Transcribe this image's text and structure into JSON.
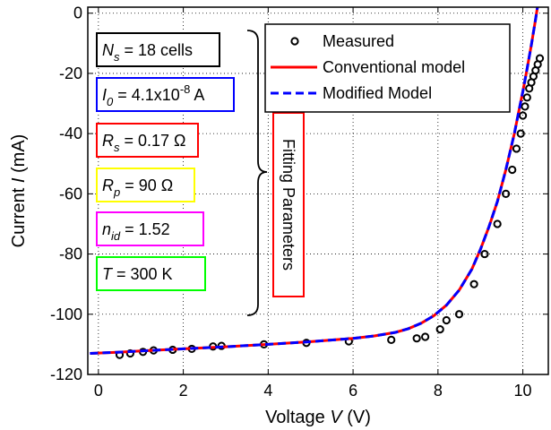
{
  "chart_data": {
    "type": "line",
    "xlabel_text": "Voltage ",
    "xlabel_var": "V",
    "xlabel_unit": " (V)",
    "ylabel_text": "Current ",
    "ylabel_var": "I",
    "ylabel_unit": " (mA)",
    "xlim": [
      -0.25,
      10.6
    ],
    "ylim": [
      -120,
      2
    ],
    "xticks": [
      0,
      2,
      4,
      6,
      8,
      10
    ],
    "yticks": [
      0,
      -20,
      -40,
      -60,
      -80,
      -100,
      -120
    ],
    "grid": "dotted",
    "legend_placement": "top-right",
    "legend": [
      "Measured",
      "Conventional model",
      "Modified Model"
    ],
    "series": [
      {
        "name": "Measured",
        "style": "markers",
        "color": "#000000",
        "x": [
          0.5,
          0.75,
          1.05,
          1.3,
          1.75,
          2.2,
          2.7,
          2.9,
          3.9,
          4.9,
          5.9,
          6.9,
          7.5,
          7.7,
          8.05,
          8.2,
          8.5,
          8.85,
          9.1,
          9.4,
          9.6,
          9.75,
          9.85,
          9.95,
          10.0,
          10.05,
          10.1,
          10.15,
          10.2,
          10.25,
          10.3,
          10.35,
          10.4
        ],
        "y": [
          -113.5,
          -113,
          -112.5,
          -112,
          -111.8,
          -111.5,
          -110.7,
          -110.5,
          -110,
          -109.5,
          -109,
          -108.5,
          -108,
          -107.5,
          -105,
          -102,
          -100,
          -90,
          -80,
          -70,
          -60,
          -52,
          -45,
          -40,
          -34,
          -31,
          -28,
          -25,
          -23,
          -21,
          -19,
          -17,
          -15
        ]
      },
      {
        "name": "Conventional model",
        "style": "solid",
        "color": "#ff0000",
        "x": [
          -0.2,
          0.5,
          1,
          2,
          3,
          4,
          5,
          6,
          6.5,
          7,
          7.3,
          7.6,
          7.9,
          8.2,
          8.5,
          8.8,
          9.0,
          9.2,
          9.4,
          9.6,
          9.8,
          9.9,
          10.0,
          10.1,
          10.2,
          10.3,
          10.4,
          10.45
        ],
        "y": [
          -113,
          -112.6,
          -112.2,
          -111.5,
          -110.8,
          -110,
          -109.1,
          -108,
          -107.2,
          -106,
          -104.8,
          -103,
          -100.5,
          -97,
          -92,
          -85,
          -78.5,
          -71,
          -62.5,
          -52,
          -40,
          -33,
          -26,
          -18.5,
          -10.5,
          -2,
          7,
          12
        ]
      },
      {
        "name": "Modified Model",
        "style": "dashed",
        "color": "#0000ff",
        "x": [
          -0.2,
          0.5,
          1,
          2,
          3,
          4,
          5,
          6,
          6.5,
          7,
          7.3,
          7.6,
          7.9,
          8.2,
          8.5,
          8.8,
          9.0,
          9.2,
          9.4,
          9.6,
          9.8,
          9.9,
          10.0,
          10.1,
          10.2,
          10.3,
          10.4,
          10.45
        ],
        "y": [
          -113,
          -112.6,
          -112.2,
          -111.5,
          -110.8,
          -110,
          -109.1,
          -108,
          -107.2,
          -106,
          -104.8,
          -103,
          -100.5,
          -97,
          -92,
          -85,
          -78.5,
          -71,
          -62.5,
          -52,
          -40,
          -33,
          -26,
          -18.5,
          -10.5,
          -2,
          7,
          12
        ]
      }
    ],
    "annotation_boxes": [
      {
        "var": "N",
        "sub": "s",
        "text": " = 18 cells",
        "border": "#000000"
      },
      {
        "var": "I",
        "sub": "0",
        "text": " = 4.1x10",
        "sup": "-8",
        "tail": " A",
        "border": "#0000ff"
      },
      {
        "var": "R",
        "sub": "s",
        "text": " = 0.17 Ω",
        "border": "#ff0000"
      },
      {
        "var": "R",
        "sub": "p",
        "text": " = 90 Ω",
        "border": "#ffff00"
      },
      {
        "var": "n",
        "sub": "id",
        "text": " = 1.52",
        "border": "#ff00ff"
      },
      {
        "var": "T",
        "sub": "",
        "text": " = 300  K",
        "border": "#00ff00"
      }
    ],
    "fitting_label": "Fitting Parameters",
    "fitting_border": "#ff0000"
  }
}
